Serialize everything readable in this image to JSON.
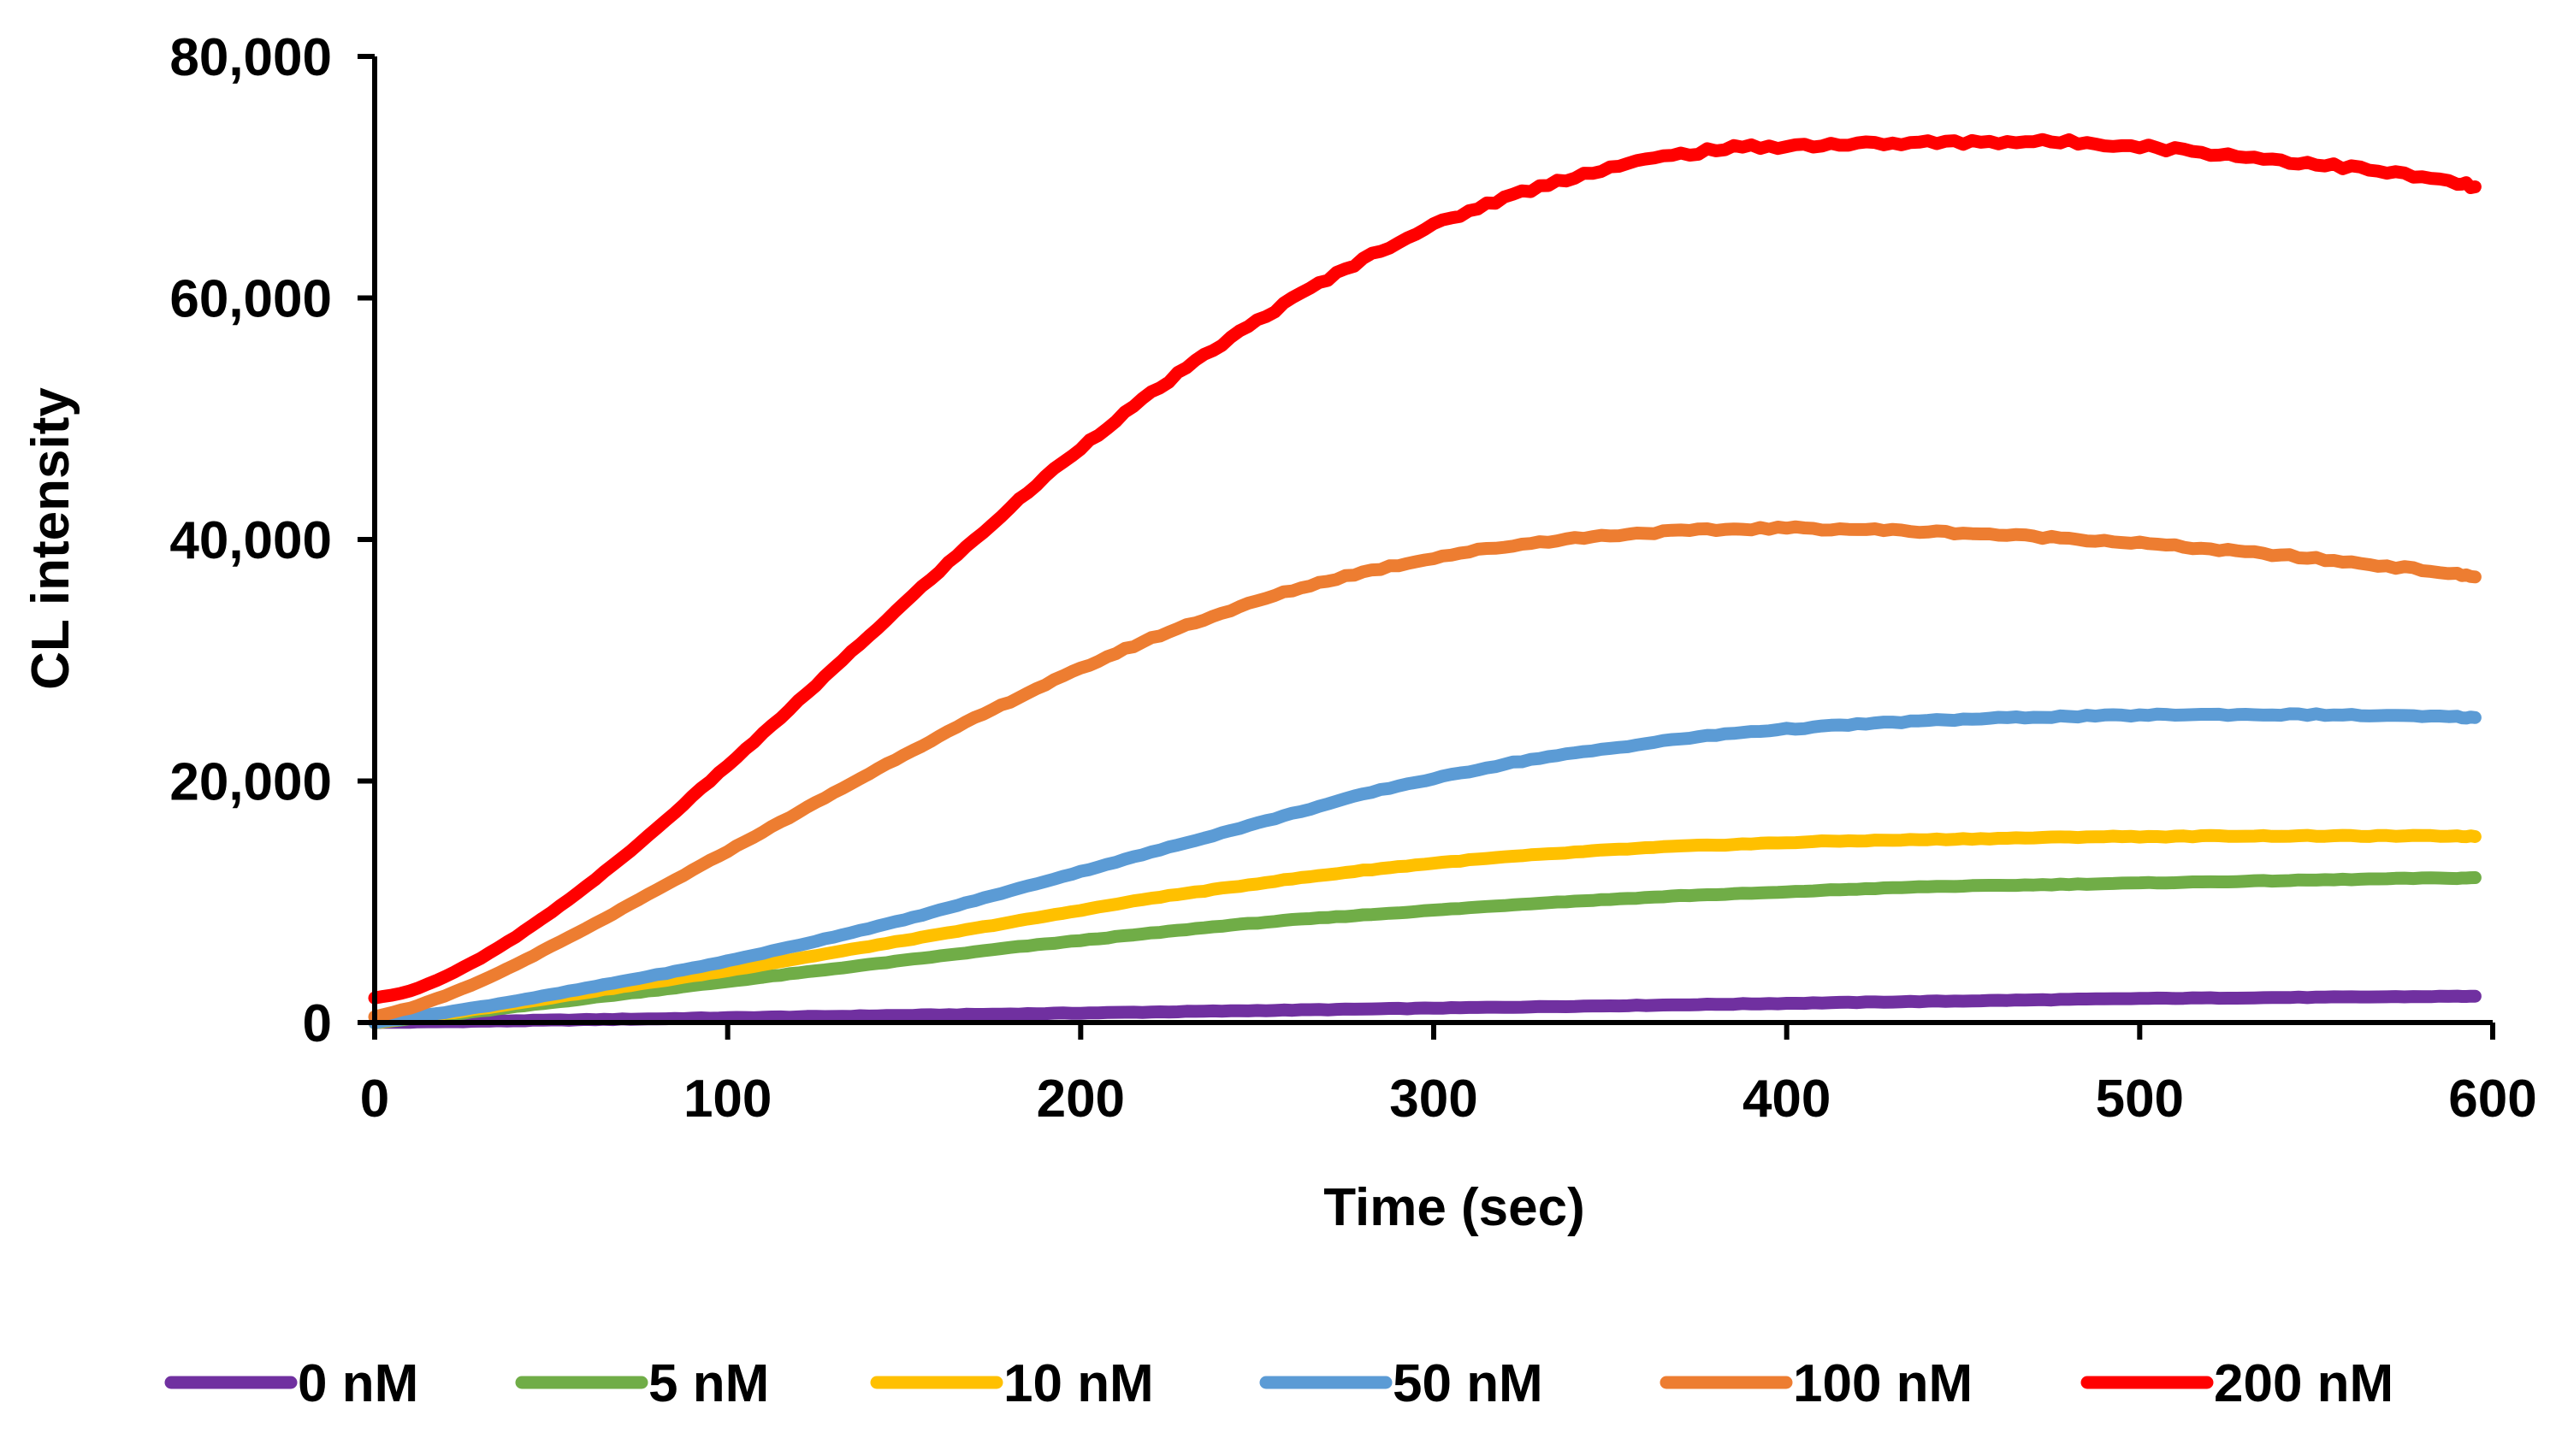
{
  "chart_data": {
    "type": "line",
    "title": "",
    "xlabel": "Time (sec)",
    "ylabel": "CL intensity",
    "xlim": [
      0,
      600
    ],
    "ylim": [
      0,
      80000
    ],
    "x_ticks": [
      0,
      100,
      200,
      300,
      400,
      500,
      600
    ],
    "x_tick_labels": [
      "0",
      "100",
      "200",
      "300",
      "400",
      "500",
      "600"
    ],
    "y_ticks": [
      0,
      20000,
      40000,
      60000,
      80000
    ],
    "y_tick_labels": [
      "0",
      "20,000",
      "40,000",
      "60,000",
      "80,000"
    ],
    "grid": false,
    "legend_position": "bottom",
    "x": [
      0,
      10,
      20,
      30,
      40,
      50,
      60,
      70,
      80,
      90,
      100,
      110,
      120,
      130,
      140,
      150,
      160,
      170,
      180,
      190,
      200,
      210,
      220,
      230,
      240,
      250,
      260,
      270,
      280,
      290,
      300,
      310,
      320,
      330,
      340,
      350,
      360,
      370,
      380,
      390,
      400,
      410,
      420,
      430,
      440,
      450,
      460,
      470,
      480,
      490,
      500,
      510,
      520,
      530,
      540,
      550,
      560,
      570,
      580,
      590,
      595
    ],
    "series": [
      {
        "name": "0 nM",
        "color": "#7030a0",
        "values": [
          0,
          30,
          70,
          110,
          150,
          190,
          230,
          270,
          310,
          350,
          390,
          430,
          470,
          510,
          550,
          590,
          630,
          670,
          710,
          750,
          790,
          830,
          870,
          910,
          950,
          990,
          1030,
          1070,
          1110,
          1150,
          1190,
          1230,
          1270,
          1310,
          1350,
          1390,
          1430,
          1470,
          1510,
          1550,
          1590,
          1630,
          1670,
          1710,
          1750,
          1790,
          1830,
          1870,
          1910,
          1950,
          1990,
          2010,
          2030,
          2050,
          2070,
          2090,
          2110,
          2130,
          2150,
          2170,
          2180
        ]
      },
      {
        "name": "5 nM",
        "color": "#70ad47",
        "values": [
          0,
          300,
          600,
          950,
          1300,
          1650,
          2000,
          2350,
          2700,
          3050,
          3400,
          3750,
          4100,
          4450,
          4800,
          5150,
          5500,
          5850,
          6200,
          6500,
          6800,
          7100,
          7400,
          7700,
          8000,
          8250,
          8500,
          8700,
          8900,
          9100,
          9300,
          9500,
          9700,
          9900,
          10050,
          10200,
          10350,
          10500,
          10600,
          10700,
          10800,
          10950,
          11050,
          11150,
          11250,
          11300,
          11350,
          11400,
          11450,
          11500,
          11550,
          11600,
          11650,
          11700,
          11750,
          11800,
          11850,
          11900,
          11950,
          11950,
          12000
        ]
      },
      {
        "name": "10 nM",
        "color": "#ffc000",
        "values": [
          0,
          350,
          750,
          1150,
          1600,
          2050,
          2500,
          2950,
          3400,
          3850,
          4300,
          4800,
          5300,
          5800,
          6300,
          6800,
          7300,
          7800,
          8300,
          8800,
          9300,
          9800,
          10300,
          10700,
          11100,
          11500,
          11900,
          12250,
          12600,
          12900,
          13200,
          13450,
          13700,
          13900,
          14100,
          14300,
          14450,
          14600,
          14700,
          14800,
          14900,
          15000,
          15050,
          15100,
          15150,
          15200,
          15250,
          15300,
          15350,
          15400,
          15400,
          15400,
          15450,
          15450,
          15450,
          15450,
          15450,
          15450,
          15450,
          15450,
          15400
        ]
      },
      {
        "name": "50 nM",
        "color": "#5b9bd5",
        "values": [
          0,
          400,
          850,
          1300,
          1800,
          2300,
          2850,
          3400,
          3950,
          4500,
          5100,
          5750,
          6400,
          7100,
          7800,
          8500,
          9300,
          10100,
          10900,
          11700,
          12500,
          13300,
          14100,
          14900,
          15700,
          16500,
          17300,
          18100,
          18900,
          19600,
          20200,
          20800,
          21400,
          21900,
          22300,
          22700,
          23100,
          23500,
          23800,
          24100,
          24300,
          24500,
          24700,
          24850,
          25000,
          25100,
          25200,
          25300,
          25350,
          25400,
          25450,
          25500,
          25500,
          25500,
          25500,
          25500,
          25450,
          25400,
          25350,
          25300,
          25250
        ]
      },
      {
        "name": "100 nM",
        "color": "#ed7d31",
        "values": [
          500,
          1200,
          2200,
          3400,
          4800,
          6300,
          7800,
          9400,
          11000,
          12600,
          14200,
          15800,
          17400,
          19000,
          20600,
          22200,
          23700,
          25200,
          26600,
          28000,
          29300,
          30600,
          31800,
          32900,
          33900,
          34900,
          35800,
          36600,
          37300,
          37900,
          38500,
          39000,
          39400,
          39800,
          40100,
          40350,
          40550,
          40700,
          40800,
          40900,
          40950,
          40900,
          40850,
          40750,
          40650,
          40550,
          40400,
          40250,
          40100,
          39900,
          39700,
          39450,
          39200,
          38950,
          38700,
          38400,
          38100,
          37800,
          37500,
          37100,
          36900
        ]
      },
      {
        "name": "200 nM",
        "color": "#ff0000",
        "values": [
          2000,
          2600,
          3800,
          5300,
          7100,
          9100,
          11300,
          13600,
          16100,
          18700,
          21300,
          23900,
          26600,
          29300,
          32000,
          34700,
          37400,
          40000,
          42600,
          45200,
          47600,
          49900,
          52100,
          54200,
          56200,
          58100,
          59900,
          61600,
          63200,
          64700,
          66000,
          67200,
          68300,
          69200,
          70100,
          70800,
          71400,
          71900,
          72300,
          72500,
          72600,
          72700,
          72750,
          72800,
          72850,
          72900,
          72950,
          72950,
          72900,
          72800,
          72600,
          72300,
          72000,
          71700,
          71400,
          71100,
          70800,
          70400,
          70000,
          69500,
          69200
        ]
      }
    ]
  }
}
